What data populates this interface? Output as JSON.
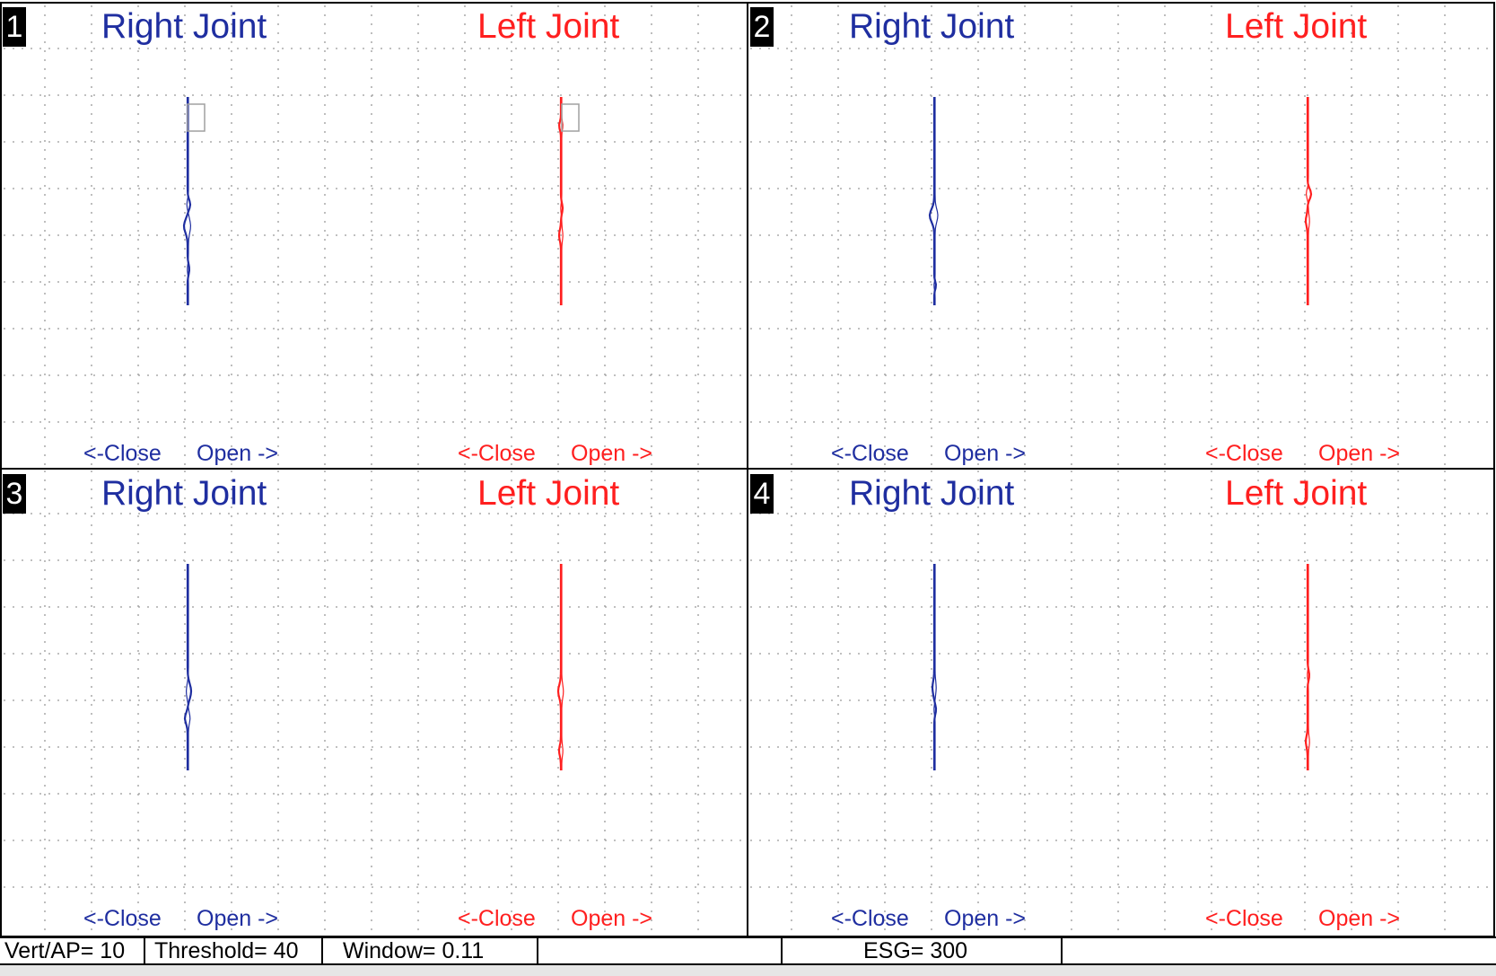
{
  "panels": [
    {
      "number": "1",
      "right_title": "Right Joint",
      "left_title": "Left Joint",
      "close_label": "<-Close",
      "open_label": "Open ->"
    },
    {
      "number": "2",
      "right_title": "Right Joint",
      "left_title": "Left Joint",
      "close_label": "<-Close",
      "open_label": "Open ->"
    },
    {
      "number": "3",
      "right_title": "Right Joint",
      "left_title": "Left Joint",
      "close_label": "<-Close",
      "open_label": "Open ->"
    },
    {
      "number": "4",
      "right_title": "Right Joint",
      "left_title": "Left Joint",
      "close_label": "<-Close",
      "open_label": "Open ->"
    }
  ],
  "status": {
    "vert_ap": "Vert/AP= 10",
    "threshold": "Threshold= 40",
    "window": "Window= 0.11",
    "blank1": "",
    "esg": "ESG= 300",
    "blank2": ""
  },
  "colors": {
    "right_joint": "#1f2ea0",
    "left_joint": "#ff1f1f",
    "grid_dot": "#9a9a9a",
    "border": "#000000"
  }
}
